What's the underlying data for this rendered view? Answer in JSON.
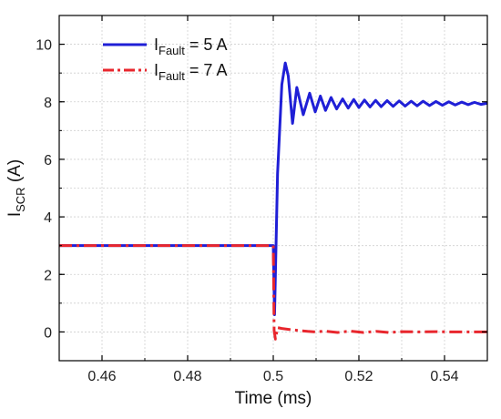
{
  "chart_data": {
    "type": "line",
    "title": "",
    "xlabel": "Time (ms)",
    "ylabel": {
      "main": "I",
      "sub": "SCR",
      "unit": " (A)"
    },
    "xlim": [
      0.45,
      0.55
    ],
    "ylim": [
      -1,
      11
    ],
    "xticks": [
      0.46,
      0.48,
      0.5,
      0.52,
      0.54
    ],
    "xtick_labels": [
      "0.46",
      "0.48",
      "0.5",
      "0.52",
      "0.54"
    ],
    "yticks": [
      0,
      2,
      4,
      6,
      8,
      10
    ],
    "ytick_labels": [
      "0",
      "2",
      "4",
      "6",
      "8",
      "10"
    ],
    "grid": true,
    "legend_position": "top-left",
    "series": [
      {
        "name": {
          "main": "I",
          "sub": "Fault",
          "rest": " = 5 A"
        },
        "color": "#1f1fd6",
        "style": "solid",
        "x": [
          0.45,
          0.5,
          0.5003,
          0.501,
          0.502,
          0.5028,
          0.5035,
          0.5045,
          0.5055,
          0.507,
          0.5085,
          0.5098,
          0.511,
          0.5122,
          0.5135,
          0.5148,
          0.5162,
          0.5175,
          0.5188,
          0.52,
          0.5213,
          0.5226,
          0.5239,
          0.5252,
          0.5266,
          0.528,
          0.5294,
          0.5308,
          0.5322,
          0.5336,
          0.535,
          0.5365,
          0.538,
          0.5395,
          0.541,
          0.5425,
          0.544,
          0.5455,
          0.547,
          0.5485,
          0.55
        ],
        "y": [
          3.0,
          3.0,
          0.6,
          5.5,
          8.6,
          9.35,
          8.9,
          7.25,
          8.5,
          7.55,
          8.3,
          7.65,
          8.2,
          7.7,
          8.15,
          7.75,
          8.1,
          7.78,
          8.08,
          7.8,
          8.06,
          7.82,
          8.05,
          7.83,
          8.04,
          7.84,
          8.03,
          7.85,
          8.02,
          7.86,
          8.02,
          7.87,
          8.01,
          7.88,
          8.0,
          7.89,
          7.99,
          7.9,
          7.98,
          7.91,
          7.95
        ]
      },
      {
        "name": {
          "main": "I",
          "sub": "Fault",
          "rest": " = 7 A"
        },
        "color": "#e8262d",
        "style": "dash-dot",
        "x": [
          0.45,
          0.5,
          0.5002,
          0.5005,
          0.501,
          0.502,
          0.504,
          0.506,
          0.508,
          0.51,
          0.512,
          0.515,
          0.518,
          0.521,
          0.524,
          0.527,
          0.53,
          0.534,
          0.538,
          0.542,
          0.546,
          0.55
        ],
        "y": [
          3.0,
          3.0,
          0.05,
          -0.25,
          0.15,
          0.12,
          0.08,
          0.05,
          0.02,
          0.0,
          0.03,
          -0.02,
          0.03,
          -0.02,
          0.02,
          -0.02,
          0.01,
          0.0,
          0.01,
          0.0,
          0.0,
          0.0
        ]
      }
    ]
  }
}
